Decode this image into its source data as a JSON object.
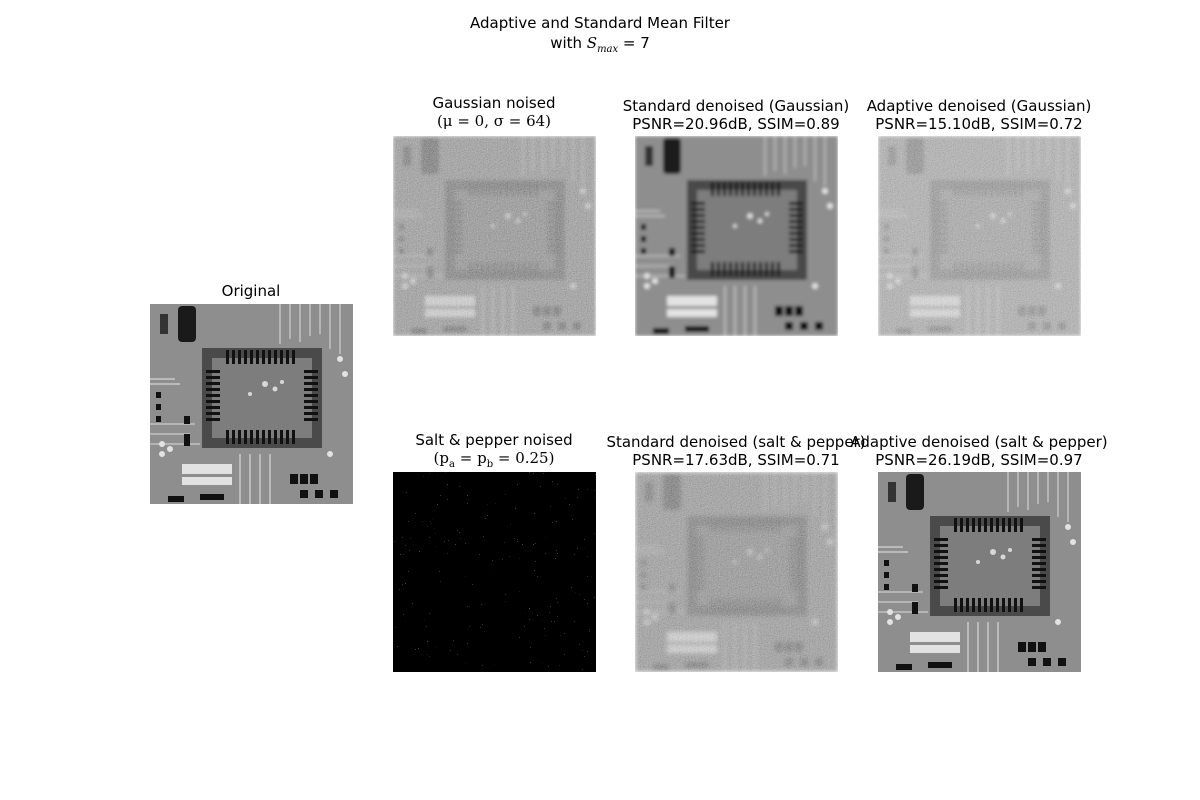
{
  "figure": {
    "title_line1": "Adaptive and Standard Mean Filter",
    "title_line2_prefix": "with ",
    "title_line2_math": "S",
    "title_line2_sub": "max",
    "title_line2_suffix": " = 7"
  },
  "panels": {
    "original": {
      "title": "Original"
    },
    "gauss_noised": {
      "title1": "Gaussian noised",
      "title2": "(μ = 0, σ = 64)"
    },
    "gauss_standard": {
      "title1": "Standard denoised (Gaussian)",
      "title2": "PSNR=20.96dB, SSIM=0.89"
    },
    "gauss_adaptive": {
      "title1": "Adaptive denoised (Gaussian)",
      "title2": "PSNR=15.10dB, SSIM=0.72"
    },
    "sp_noised": {
      "title1": "Salt & pepper noised",
      "title2": "(p",
      "title2_sub_a": "a",
      "title2_mid": " = p",
      "title2_sub_b": "b",
      "title2_end": " = 0.25)"
    },
    "sp_standard": {
      "title1": "Standard denoised (salt & pepper)",
      "title2": "PSNR=17.63dB, SSIM=0.71"
    },
    "sp_adaptive": {
      "title1": "Adaptive denoised (salt & pepper)",
      "title2": "PSNR=26.19dB, SSIM=0.97"
    }
  }
}
